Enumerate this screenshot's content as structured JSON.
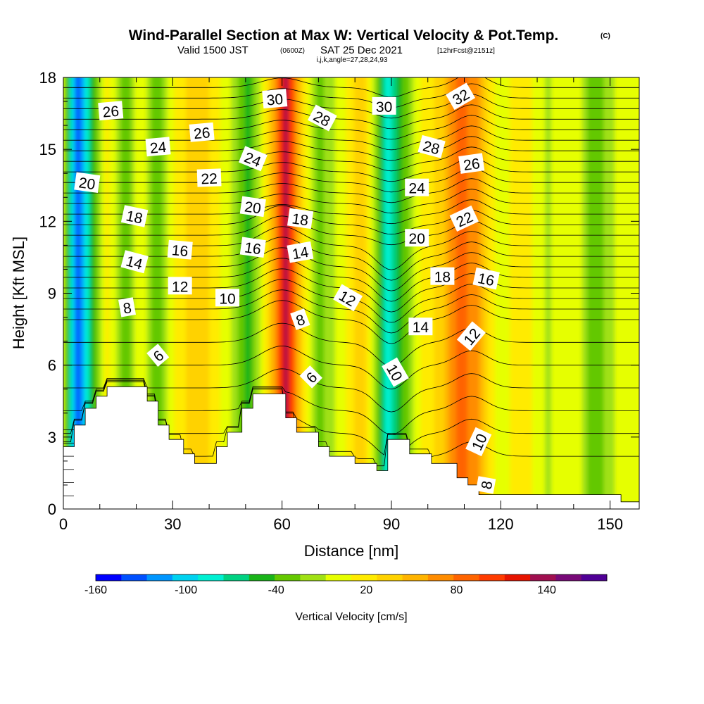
{
  "titles": {
    "main": "Wind-Parallel Section at Max W: Vertical Velocity & Pot.Temp.",
    "main_tag": "(C)",
    "valid_prefix": "Valid 1500 JST",
    "valid_utc": "(0600Z)",
    "valid_date": "SAT 25 Dec 2021",
    "forecast_info": "[12hrFcst@2151z]",
    "indices": "i,j,k,angle=27,28,24,93"
  },
  "chart_data": {
    "type": "heatmap",
    "xlabel": "Distance [nm]",
    "ylabel": "Height [Kft MSL]",
    "xlim": [
      0,
      158
    ],
    "ylim": [
      0,
      18
    ],
    "xticks": [
      "0",
      "30",
      "60",
      "90",
      "120",
      "150"
    ],
    "xtick_values": [
      0,
      30,
      60,
      90,
      120,
      150
    ],
    "yticks": [
      "0",
      "3",
      "6",
      "9",
      "12",
      "15",
      "18"
    ],
    "ytick_values": [
      0,
      3,
      6,
      9,
      12,
      15,
      18
    ],
    "colorbar": {
      "label": "Vertical Velocity [cm/s]",
      "range": [
        -160,
        180
      ],
      "tick_labels": [
        "-160",
        "-100",
        "-40",
        "20",
        "80",
        "140"
      ],
      "tick_values": [
        -160,
        -100,
        -40,
        20,
        80,
        140
      ],
      "colors": [
        "#0000ff",
        "#0050ff",
        "#0096ff",
        "#00d2f0",
        "#00f0d2",
        "#00d282",
        "#19b419",
        "#64c800",
        "#a0e114",
        "#e6ff00",
        "#ffeb00",
        "#ffd200",
        "#ffb400",
        "#ff8c00",
        "#ff6400",
        "#ff3c00",
        "#e61400",
        "#a00f50",
        "#780a78",
        "#500096"
      ]
    },
    "velocity_columns": [
      {
        "x": 0,
        "w": 0
      },
      {
        "x": 4,
        "w": -140
      },
      {
        "x": 8,
        "w": -50
      },
      {
        "x": 12,
        "w": 20
      },
      {
        "x": 17,
        "w": -40
      },
      {
        "x": 21,
        "w": 10
      },
      {
        "x": 26,
        "w": -40
      },
      {
        "x": 31,
        "w": 20
      },
      {
        "x": 38,
        "w": 40
      },
      {
        "x": 46,
        "w": -10
      },
      {
        "x": 51,
        "w": -50
      },
      {
        "x": 55,
        "w": 10
      },
      {
        "x": 58,
        "w": 60
      },
      {
        "x": 61,
        "w": 140
      },
      {
        "x": 65,
        "w": 40
      },
      {
        "x": 70,
        "w": -30
      },
      {
        "x": 76,
        "w": 0
      },
      {
        "x": 82,
        "w": 40
      },
      {
        "x": 86,
        "w": -20
      },
      {
        "x": 89,
        "w": -90
      },
      {
        "x": 93,
        "w": -40
      },
      {
        "x": 98,
        "w": 10
      },
      {
        "x": 104,
        "w": 40
      },
      {
        "x": 109,
        "w": 90
      },
      {
        "x": 114,
        "w": 60
      },
      {
        "x": 119,
        "w": 0
      },
      {
        "x": 126,
        "w": 20
      },
      {
        "x": 133,
        "w": -10
      },
      {
        "x": 140,
        "w": 10
      },
      {
        "x": 146,
        "w": -40
      },
      {
        "x": 152,
        "w": 0
      },
      {
        "x": 158,
        "w": 10
      }
    ],
    "terrain": [
      [
        0,
        2.6
      ],
      [
        3,
        2.6
      ],
      [
        3,
        3.5
      ],
      [
        6,
        3.5
      ],
      [
        6,
        4.2
      ],
      [
        9,
        4.2
      ],
      [
        9,
        4.7
      ],
      [
        12,
        4.7
      ],
      [
        12,
        5.1
      ],
      [
        23,
        5.1
      ],
      [
        23,
        4.5
      ],
      [
        26,
        4.5
      ],
      [
        26,
        3.5
      ],
      [
        29,
        3.5
      ],
      [
        29,
        2.9
      ],
      [
        33,
        2.9
      ],
      [
        33,
        2.3
      ],
      [
        36,
        2.3
      ],
      [
        36,
        1.9
      ],
      [
        42,
        1.9
      ],
      [
        42,
        2.6
      ],
      [
        45,
        2.6
      ],
      [
        45,
        3.2
      ],
      [
        49,
        3.2
      ],
      [
        49,
        4.2
      ],
      [
        52,
        4.2
      ],
      [
        52,
        4.8
      ],
      [
        61,
        4.8
      ],
      [
        61,
        3.8
      ],
      [
        64,
        3.8
      ],
      [
        64,
        3.2
      ],
      [
        70,
        3.2
      ],
      [
        70,
        2.6
      ],
      [
        73,
        2.6
      ],
      [
        73,
        2.2
      ],
      [
        80,
        2.2
      ],
      [
        80,
        1.9
      ],
      [
        86,
        1.9
      ],
      [
        86,
        1.6
      ],
      [
        89,
        1.6
      ],
      [
        89,
        2.9
      ],
      [
        95,
        2.9
      ],
      [
        95,
        2.3
      ],
      [
        101,
        2.3
      ],
      [
        101,
        1.9
      ],
      [
        108,
        1.9
      ],
      [
        108,
        1.3
      ],
      [
        111,
        1.3
      ],
      [
        111,
        1.0
      ],
      [
        114,
        1.0
      ],
      [
        114,
        0.6
      ],
      [
        146,
        0.6
      ],
      [
        146,
        0.6
      ],
      [
        153,
        0.6
      ],
      [
        153,
        0.3
      ],
      [
        158,
        0.3
      ]
    ],
    "theta_levels": [
      6,
      7,
      8,
      9,
      10,
      11,
      12,
      13,
      14,
      15,
      16,
      17,
      18,
      19,
      20,
      21,
      22,
      23,
      24,
      25,
      26,
      27,
      28,
      29,
      30,
      31,
      32,
      33,
      34
    ],
    "contour_labels": [
      {
        "text": "26",
        "x": 13,
        "y": 16.6,
        "angle": -5
      },
      {
        "text": "24",
        "x": 26,
        "y": 15.1,
        "angle": -5
      },
      {
        "text": "26",
        "x": 38,
        "y": 15.7,
        "angle": -5
      },
      {
        "text": "22",
        "x": 40,
        "y": 13.8,
        "angle": -2
      },
      {
        "text": "20",
        "x": 6.5,
        "y": 13.6,
        "angle": 8
      },
      {
        "text": "24",
        "x": 52,
        "y": 14.6,
        "angle": 22
      },
      {
        "text": "30",
        "x": 58,
        "y": 17.1,
        "angle": -5
      },
      {
        "text": "28",
        "x": 71,
        "y": 16.3,
        "angle": 28
      },
      {
        "text": "30",
        "x": 88,
        "y": 16.8,
        "angle": 0
      },
      {
        "text": "32",
        "x": 109,
        "y": 17.2,
        "angle": -30
      },
      {
        "text": "28",
        "x": 101,
        "y": 15.1,
        "angle": 15
      },
      {
        "text": "26",
        "x": 112,
        "y": 14.4,
        "angle": -8
      },
      {
        "text": "24",
        "x": 97,
        "y": 13.4,
        "angle": 0
      },
      {
        "text": "20",
        "x": 52,
        "y": 12.6,
        "angle": 8
      },
      {
        "text": "18",
        "x": 19.5,
        "y": 12.2,
        "angle": 12
      },
      {
        "text": "18",
        "x": 65,
        "y": 12.1,
        "angle": 8
      },
      {
        "text": "22",
        "x": 110,
        "y": 12.1,
        "angle": -25
      },
      {
        "text": "20",
        "x": 97,
        "y": 11.3,
        "angle": 0
      },
      {
        "text": "16",
        "x": 32,
        "y": 10.8,
        "angle": 5
      },
      {
        "text": "16",
        "x": 52,
        "y": 10.9,
        "angle": 8
      },
      {
        "text": "14",
        "x": 19.5,
        "y": 10.3,
        "angle": 15
      },
      {
        "text": "14",
        "x": 65,
        "y": 10.7,
        "angle": -10
      },
      {
        "text": "18",
        "x": 104,
        "y": 9.7,
        "angle": 0
      },
      {
        "text": "16",
        "x": 116,
        "y": 9.6,
        "angle": 12
      },
      {
        "text": "12",
        "x": 32,
        "y": 9.3,
        "angle": 0
      },
      {
        "text": "10",
        "x": 45,
        "y": 8.8,
        "angle": 0
      },
      {
        "text": "12",
        "x": 78,
        "y": 8.8,
        "angle": 30
      },
      {
        "text": "8",
        "x": 17.5,
        "y": 8.4,
        "angle": -10
      },
      {
        "text": "8",
        "x": 65,
        "y": 7.9,
        "angle": -20
      },
      {
        "text": "14",
        "x": 98,
        "y": 7.6,
        "angle": 0
      },
      {
        "text": "12",
        "x": 112,
        "y": 7.2,
        "angle": -50
      },
      {
        "text": "6",
        "x": 26,
        "y": 6.4,
        "angle": -40
      },
      {
        "text": "6",
        "x": 68,
        "y": 5.5,
        "angle": -45
      },
      {
        "text": "10",
        "x": 91,
        "y": 5.7,
        "angle": 60
      },
      {
        "text": "10",
        "x": 114,
        "y": 2.8,
        "angle": -65
      },
      {
        "text": "8",
        "x": 116,
        "y": 1.0,
        "angle": -80
      }
    ]
  }
}
